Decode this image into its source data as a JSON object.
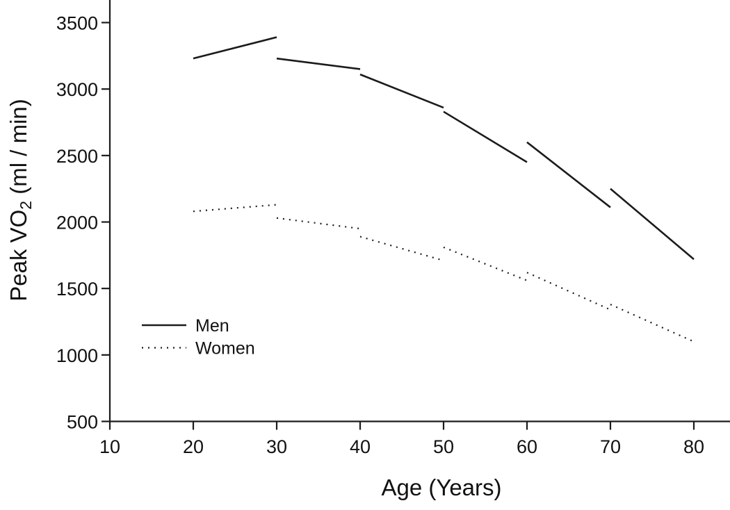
{
  "figure": {
    "background_color": "#ffffff",
    "line_color": "#1b1b1b",
    "text_color": "#111111"
  },
  "y_axis": {
    "title_main": "Peak VO",
    "title_sub": "2",
    "title_rest": " (ml / min)"
  },
  "chart_data": {
    "type": "line",
    "title": "",
    "xlabel": "Age (Years)",
    "ylabel": "Peak VO2 (ml / min)",
    "xlim": [
      10,
      84
    ],
    "ylim": [
      500,
      3670
    ],
    "x_ticks": [
      10,
      20,
      30,
      40,
      50,
      60,
      70,
      80
    ],
    "y_ticks": [
      500,
      1000,
      1500,
      2000,
      2500,
      3000,
      3500
    ],
    "grid": false,
    "legend_position": "lower-left",
    "series_note": "Each series is drawn as disconnected per-decade segments with jumps at decade boundaries",
    "series": [
      {
        "name": "Men",
        "line_style": "solid",
        "segments": [
          {
            "x": [
              20,
              30
            ],
            "y": [
              3230,
              3390
            ]
          },
          {
            "x": [
              30,
              40
            ],
            "y": [
              3230,
              3150
            ]
          },
          {
            "x": [
              40,
              50
            ],
            "y": [
              3110,
              2860
            ]
          },
          {
            "x": [
              50,
              60
            ],
            "y": [
              2830,
              2450
            ]
          },
          {
            "x": [
              60,
              70
            ],
            "y": [
              2600,
              2110
            ]
          },
          {
            "x": [
              70,
              80
            ],
            "y": [
              2250,
              1720
            ]
          }
        ]
      },
      {
        "name": "Women",
        "line_style": "dotted",
        "segments": [
          {
            "x": [
              20,
              30
            ],
            "y": [
              2080,
              2130
            ]
          },
          {
            "x": [
              30,
              40
            ],
            "y": [
              2030,
              1950
            ]
          },
          {
            "x": [
              40,
              50
            ],
            "y": [
              1890,
              1710
            ]
          },
          {
            "x": [
              50,
              60
            ],
            "y": [
              1810,
              1560
            ]
          },
          {
            "x": [
              60,
              70
            ],
            "y": [
              1620,
              1340
            ]
          },
          {
            "x": [
              70,
              80
            ],
            "y": [
              1380,
              1100
            ]
          }
        ]
      }
    ]
  }
}
